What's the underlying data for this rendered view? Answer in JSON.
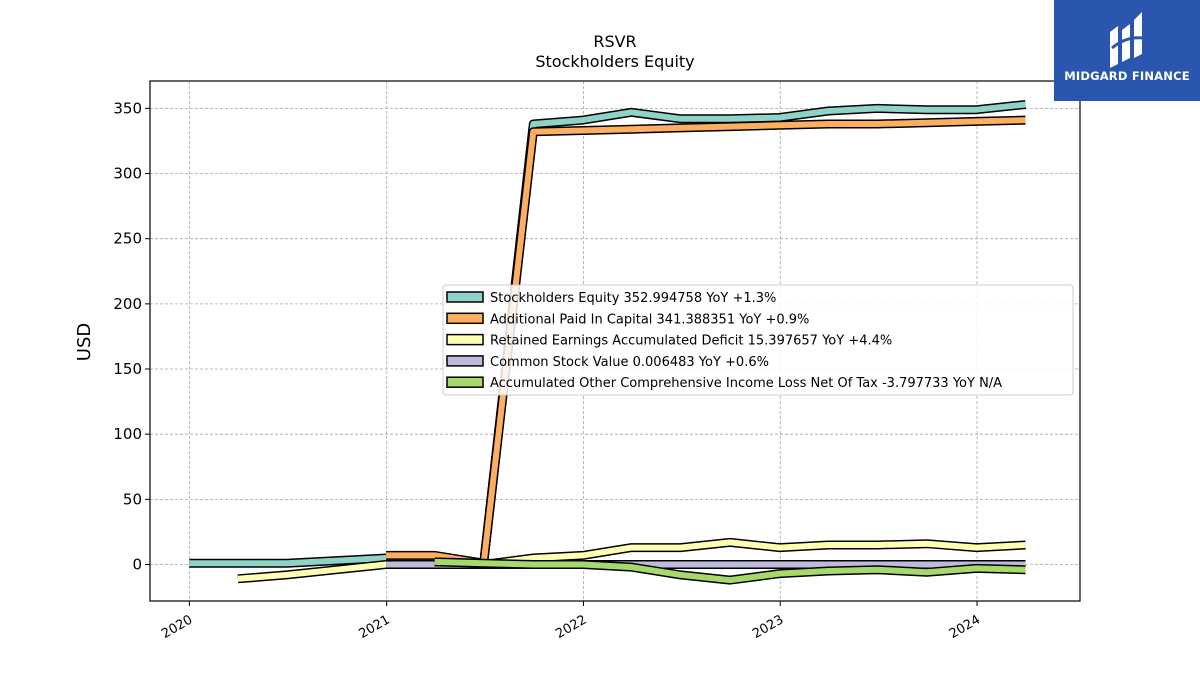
{
  "chart_data": {
    "type": "line",
    "title": "RSVR",
    "subtitle": "Stockholders  Equity",
    "ylabel": "USD",
    "xlabel": "",
    "ylim": [
      -28,
      371
    ],
    "xlim": [
      "2019-10-20",
      "2024-07-10"
    ],
    "yticks": [
      0,
      50,
      100,
      150,
      200,
      250,
      300,
      350
    ],
    "xticks": [
      "2020-01-01",
      "2021-01-01",
      "2022-01-01",
      "2023-01-01",
      "2024-01-01"
    ],
    "xtick_labels": [
      "2020",
      "2021",
      "2022",
      "2023",
      "2024"
    ],
    "grid": true,
    "legend_position": "center-right",
    "series": [
      {
        "name": "Stockholders Equity",
        "legend": "Stockholders Equity  352.994758 YoY +1.3%",
        "color": "#8dd3c7",
        "points": [
          [
            "2020-01-01",
            1
          ],
          [
            "2020-06-30",
            1
          ],
          [
            "2020-12-31",
            5
          ],
          [
            "2021-03-31",
            4
          ],
          [
            "2021-06-30",
            1
          ],
          [
            "2021-09-30",
            338
          ],
          [
            "2021-12-31",
            341
          ],
          [
            "2022-03-31",
            347
          ],
          [
            "2022-06-30",
            342
          ],
          [
            "2022-09-30",
            342
          ],
          [
            "2022-12-31",
            343
          ],
          [
            "2023-03-31",
            348
          ],
          [
            "2023-06-30",
            350
          ],
          [
            "2023-09-30",
            349
          ],
          [
            "2023-12-31",
            349
          ],
          [
            "2024-03-31",
            353
          ]
        ]
      },
      {
        "name": "Additional Paid In Capital",
        "legend": "Additional Paid In Capital  341.388351 YoY +0.9%",
        "color": "#fdae61",
        "points": [
          [
            "2020-12-31",
            7
          ],
          [
            "2021-03-31",
            7
          ],
          [
            "2021-06-30",
            1
          ],
          [
            "2021-09-30",
            332
          ],
          [
            "2021-12-31",
            333
          ],
          [
            "2022-03-31",
            334
          ],
          [
            "2022-06-30",
            335
          ],
          [
            "2022-09-30",
            336
          ],
          [
            "2022-12-31",
            337
          ],
          [
            "2023-03-31",
            338
          ],
          [
            "2023-06-30",
            338
          ],
          [
            "2023-09-30",
            339
          ],
          [
            "2023-12-31",
            340
          ],
          [
            "2024-03-31",
            341
          ]
        ]
      },
      {
        "name": "Retained Earnings Accumulated Deficit",
        "legend": "Retained Earnings Accumulated Deficit  15.397657 YoY +4.4%",
        "color": "#ffffb3",
        "points": [
          [
            "2020-03-31",
            -11
          ],
          [
            "2020-06-30",
            -8
          ],
          [
            "2020-09-30",
            -4
          ],
          [
            "2020-12-31",
            0
          ],
          [
            "2021-03-31",
            0
          ],
          [
            "2021-06-30",
            0
          ],
          [
            "2021-09-30",
            5
          ],
          [
            "2021-12-31",
            7
          ],
          [
            "2022-03-31",
            13
          ],
          [
            "2022-06-30",
            13
          ],
          [
            "2022-09-30",
            17
          ],
          [
            "2022-12-31",
            13
          ],
          [
            "2023-03-31",
            15
          ],
          [
            "2023-06-30",
            15
          ],
          [
            "2023-09-30",
            16
          ],
          [
            "2023-12-31",
            13
          ],
          [
            "2024-03-31",
            15
          ]
        ]
      },
      {
        "name": "Common Stock Value",
        "legend": "Common Stock Value  0.006483 YoY +0.6%",
        "color": "#bebada",
        "points": [
          [
            "2020-12-31",
            0
          ],
          [
            "2021-03-31",
            0
          ],
          [
            "2021-06-30",
            0
          ],
          [
            "2021-09-30",
            0
          ],
          [
            "2021-12-31",
            0
          ],
          [
            "2022-03-31",
            0
          ],
          [
            "2022-06-30",
            0
          ],
          [
            "2022-09-30",
            0
          ],
          [
            "2022-12-31",
            0
          ],
          [
            "2023-03-31",
            0
          ],
          [
            "2023-06-30",
            0
          ],
          [
            "2023-09-30",
            0
          ],
          [
            "2023-12-31",
            0
          ],
          [
            "2024-03-31",
            0
          ]
        ]
      },
      {
        "name": "Accumulated Other Comprehensive Income Loss Net Of Tax",
        "legend": "Accumulated Other Comprehensive Income Loss Net Of Tax  -3.797733 YoY N/A",
        "color": "#a6d96a",
        "points": [
          [
            "2021-03-31",
            2
          ],
          [
            "2021-06-30",
            1
          ],
          [
            "2021-09-30",
            0
          ],
          [
            "2021-12-31",
            0
          ],
          [
            "2022-03-31",
            -2
          ],
          [
            "2022-06-30",
            -8
          ],
          [
            "2022-09-30",
            -12
          ],
          [
            "2022-12-31",
            -7
          ],
          [
            "2023-03-31",
            -5
          ],
          [
            "2023-06-30",
            -4
          ],
          [
            "2023-09-30",
            -6
          ],
          [
            "2023-12-31",
            -3
          ],
          [
            "2024-03-31",
            -4
          ]
        ]
      }
    ]
  },
  "logo": {
    "brand": "MIDGARD FINANCE"
  }
}
